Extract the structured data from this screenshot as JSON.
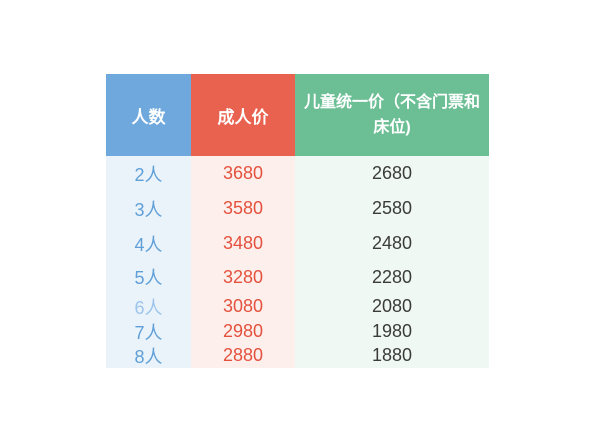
{
  "chart_data": {
    "type": "table",
    "columns": [
      "人数",
      "成人价",
      "儿童统一价（不含门票和床位)"
    ],
    "rows": [
      [
        "2人",
        "3680",
        "2680"
      ],
      [
        "3人",
        "3580",
        "2580"
      ],
      [
        "4人",
        "3480",
        "2480"
      ],
      [
        "5人",
        "3280",
        "2280"
      ],
      [
        "6人",
        "3080",
        "2080"
      ],
      [
        "7人",
        "2980",
        "1980"
      ],
      [
        "8人",
        "2880",
        "1880"
      ]
    ]
  },
  "colors": {
    "header_people_bg": "#6fa8dc",
    "header_adult_bg": "#e9614f",
    "header_child_bg": "#6cbf95",
    "body_people_bg": "#ebf3fa",
    "body_adult_bg": "#fdefec",
    "body_child_bg": "#eff8f2",
    "people_text": "#5f9fd8",
    "people_text_muted": "#9cc5ec",
    "adult_text": "#e4523e",
    "child_text": "#3b3b3b",
    "header_text": "#ffffff",
    "page_bg": "#ffffff"
  }
}
